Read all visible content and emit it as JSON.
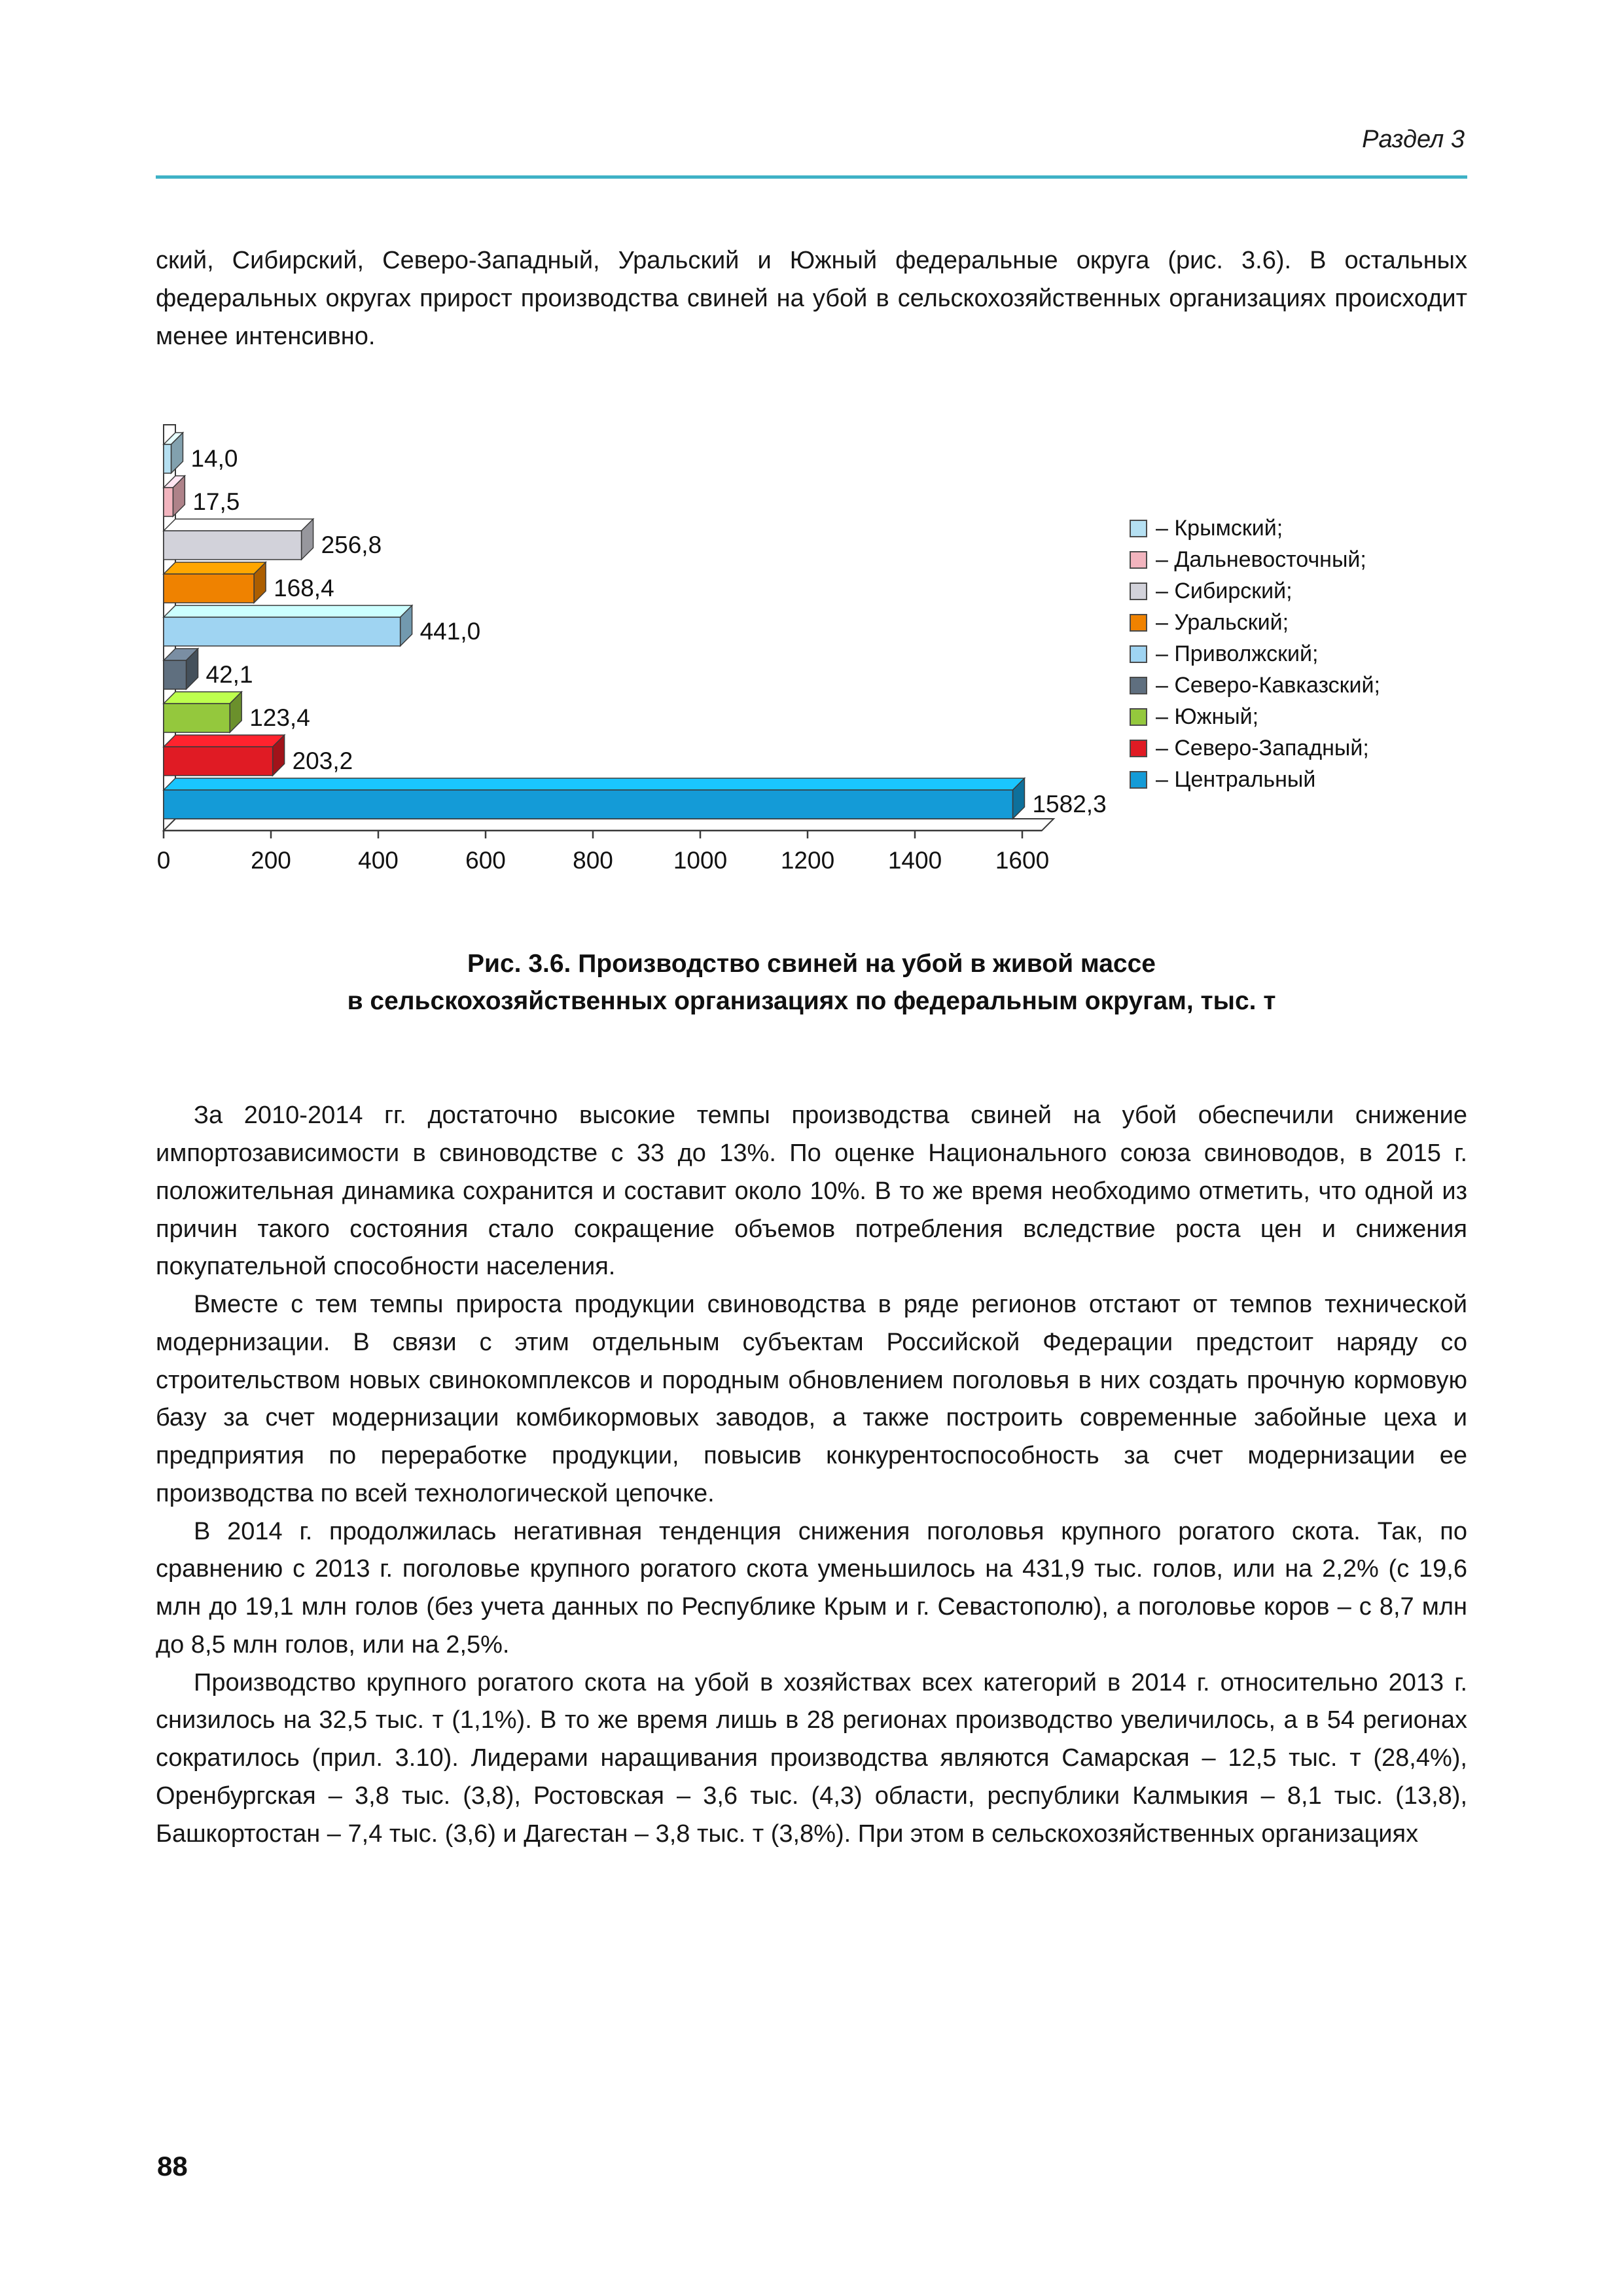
{
  "page": {
    "section_header": "Раздел 3",
    "page_number": "88",
    "accent_color": "#3fb2c6"
  },
  "intro_paragraph": "ский, Сибирский, Северо-Западный, Уральский и Южный федеральные округа (рис. 3.6). В остальных федеральных округах прирост производства свиней на убой в сельскохозяйственных организациях происходит менее интенсивно.",
  "figure_caption": {
    "line1": "Рис. 3.6. Производство свиней на убой в живой массе",
    "line2": "в сельскохозяйственных организациях по федеральным округам, тыс. т"
  },
  "chart_data": {
    "type": "bar",
    "orientation": "horizontal",
    "style": "3d",
    "categories": [
      "Крымский",
      "Дальневосточный",
      "Сибирский",
      "Уральский",
      "Приволжский",
      "Северо-Кавказский",
      "Южный",
      "Северо-Западный",
      "Центральный"
    ],
    "values": [
      14.0,
      17.5,
      256.8,
      168.4,
      441.0,
      42.1,
      123.4,
      203.2,
      1582.3
    ],
    "value_labels": [
      "14,0",
      "17,5",
      "256,8",
      "168,4",
      "441,0",
      "42,1",
      "123,4",
      "203,2",
      "1582,3"
    ],
    "bar_colors": [
      "#b5e0f2",
      "#f2b4be",
      "#d2d2da",
      "#ef8200",
      "#9fd4f2",
      "#5f6f7f",
      "#94c83d",
      "#e01b24",
      "#149bd7"
    ],
    "legend_labels": [
      "– Крымский;",
      "– Дальневосточный;",
      "– Сибирский;",
      "– Уральский;",
      "– Приволжский;",
      "– Северо-Кавказский;",
      "– Южный;",
      "– Северо-Западный;",
      "– Центральный"
    ],
    "x_ticks": [
      "0",
      "200",
      "400",
      "600",
      "800",
      "1000",
      "1200",
      "1400",
      "1600"
    ],
    "xlim": [
      0,
      1640
    ],
    "unit": "тыс. т",
    "legend_position": "right",
    "grid": false
  },
  "paragraphs": [
    "За 2010-2014 гг. достаточно высокие темпы производства свиней на убой обеспечили снижение импортозависимости в свиноводстве с 33 до 13%. По оценке Национального союза свиноводов, в 2015 г. положительная динамика сохранится и составит около 10%. В то же время необходимо отметить, что одной из причин такого состояния стало сокращение объемов потребления вследствие роста цен и снижения покупательной способности населения.",
    "Вместе с тем темпы прироста продукции свиноводства в ряде регионов отстают от темпов технической модернизации. В связи с этим отдельным субъектам Российской Федерации предстоит наряду со строительством новых свинокомплексов и породным обновлением поголовья в них создать прочную кормовую базу за счет модернизации комбикормовых заводов, а также построить современные забойные цеха и предприятия по переработке продукции, повысив конкурентоспособность за счет модернизации ее производства по всей технологической цепочке.",
    "В 2014 г. продолжилась негативная тенденция снижения поголовья крупного рогатого скота. Так, по сравнению с 2013 г. поголовье крупного рогатого скота уменьшилось на 431,9 тыс. голов, или на 2,2% (с 19,6 млн до 19,1 млн голов (без учета данных по Республике Крым и г. Севастополю), а поголовье коров – с 8,7 млн до 8,5 млн голов, или на 2,5%.",
    "Производство крупного рогатого скота на убой в хозяйствах всех категорий в 2014 г. относительно 2013 г. снизилось на 32,5 тыс. т (1,1%). В то же время лишь в 28 регионах производство увеличилось, а в 54 регионах сократилось (прил. 3.10). Лидерами наращивания производства являются Самарская – 12,5 тыс. т (28,4%), Оренбургская – 3,8 тыс. (3,8), Ростовская – 3,6 тыс. (4,3) области, республики Калмыкия – 8,1 тыс. (13,8), Башкортостан – 7,4 тыс. (3,6) и Дагестан – 3,8 тыс. т (3,8%). При этом в сельскохозяйственных организациях"
  ]
}
